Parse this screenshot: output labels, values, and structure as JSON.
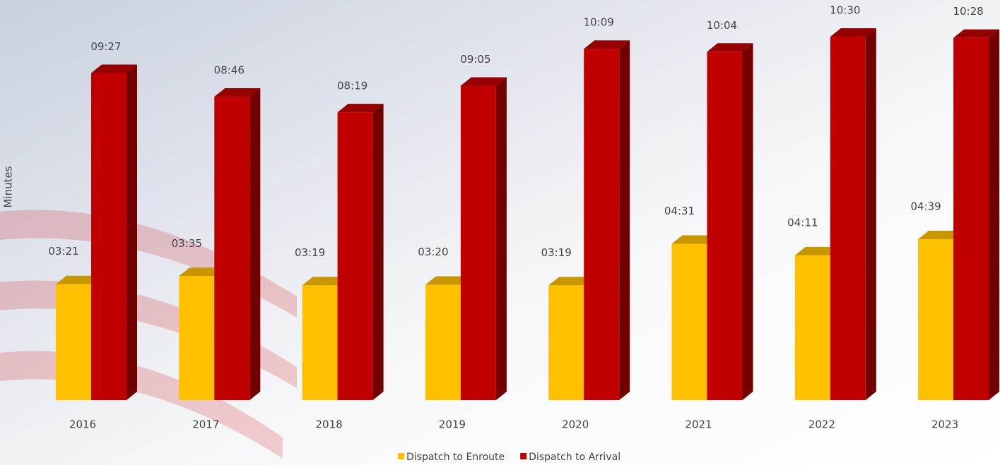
{
  "chart_data": {
    "type": "bar3d",
    "y_label": "Minutes",
    "categories": [
      "2016",
      "2017",
      "2018",
      "2019",
      "2020",
      "2021",
      "2022",
      "2023"
    ],
    "series": [
      {
        "name": "Dispatch to Enroute",
        "color": "#FFC000",
        "values": [
          3.35,
          3.5833,
          3.3167,
          3.3333,
          3.3167,
          4.5167,
          4.1833,
          4.65
        ],
        "value_labels": [
          "03:21",
          "03:35",
          "03:19",
          "03:20",
          "03:19",
          "04:31",
          "04:11",
          "04:39"
        ]
      },
      {
        "name": "Dispatch to Arrival",
        "color": "#C00000",
        "values": [
          9.45,
          8.7667,
          8.3167,
          9.0833,
          10.15,
          10.0667,
          10.5,
          10.4667
        ],
        "value_labels": [
          "09:27",
          "08:46",
          "08:19",
          "09:05",
          "10:09",
          "10:04",
          "10:30",
          "10:28"
        ]
      }
    ],
    "ylim": [
      0,
      11.5
    ]
  }
}
